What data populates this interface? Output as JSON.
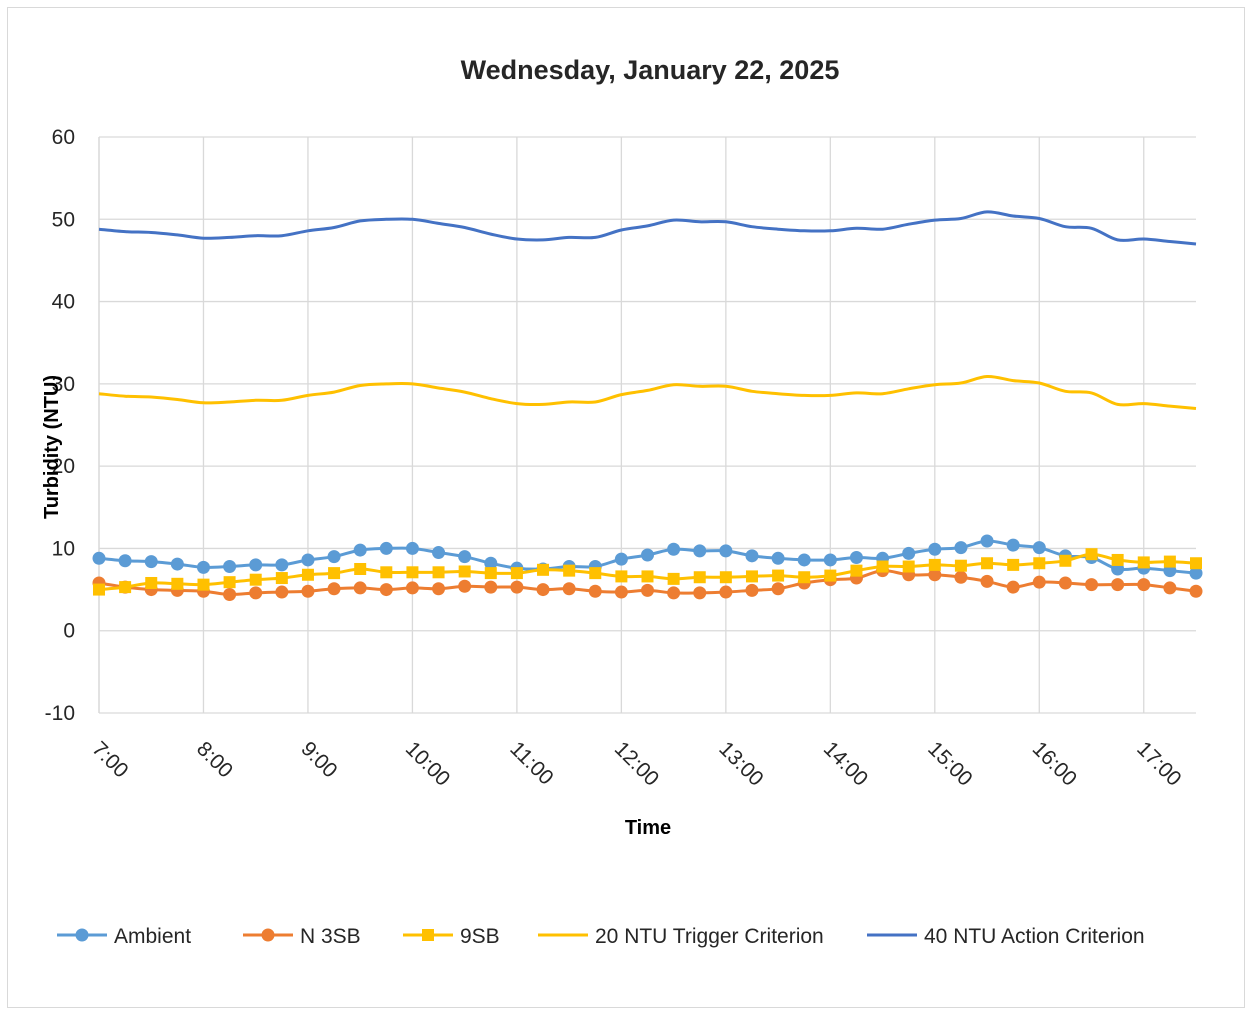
{
  "chart_data": {
    "type": "line",
    "title": "Wednesday, January 22, 2025",
    "xlabel": "Time",
    "ylabel": "Turbidity (NTU)",
    "ylim": [
      -10,
      60
    ],
    "yticks": [
      -10,
      0,
      10,
      20,
      30,
      40,
      50,
      60
    ],
    "xticks": [
      "7:00",
      "8:00",
      "9:00",
      "10:00",
      "11:00",
      "12:00",
      "13:00",
      "14:00",
      "15:00",
      "16:00",
      "17:00"
    ],
    "x": [
      "7:00",
      "7:15",
      "7:30",
      "7:45",
      "8:00",
      "8:15",
      "8:30",
      "8:45",
      "9:00",
      "9:15",
      "9:30",
      "9:45",
      "10:00",
      "10:15",
      "10:30",
      "10:45",
      "11:00",
      "11:15",
      "11:30",
      "11:45",
      "12:00",
      "12:15",
      "12:30",
      "12:45",
      "13:00",
      "13:15",
      "13:30",
      "13:45",
      "14:00",
      "14:15",
      "14:30",
      "14:45",
      "15:00",
      "15:15",
      "15:30",
      "15:45",
      "16:00",
      "16:15",
      "16:30",
      "16:45",
      "17:00",
      "17:15",
      "17:30"
    ],
    "grid": "vertical and horizontal",
    "legend_position": "bottom",
    "series": [
      {
        "name": "Ambient",
        "color": "#5b9bd5",
        "marker": "circle",
        "line_width": 3,
        "values": [
          8.8,
          8.5,
          8.4,
          8.1,
          7.7,
          7.8,
          8.0,
          8.0,
          8.6,
          9.0,
          9.8,
          10.0,
          10.0,
          9.5,
          9.0,
          8.2,
          7.6,
          7.5,
          7.8,
          7.8,
          8.7,
          9.2,
          9.9,
          9.7,
          9.7,
          9.1,
          8.8,
          8.6,
          8.6,
          8.9,
          8.8,
          9.4,
          9.9,
          10.1,
          10.9,
          10.4,
          10.1,
          9.1,
          8.9,
          7.5,
          7.6,
          7.3,
          7.0
        ]
      },
      {
        "name": "N 3SB",
        "color": "#ed7d31",
        "marker": "circle",
        "line_width": 3,
        "values": [
          5.8,
          5.3,
          5.0,
          4.9,
          4.8,
          4.4,
          4.6,
          4.7,
          4.8,
          5.1,
          5.2,
          5.0,
          5.2,
          5.1,
          5.4,
          5.3,
          5.3,
          5.0,
          5.1,
          4.8,
          4.7,
          4.9,
          4.6,
          4.6,
          4.7,
          4.9,
          5.1,
          5.8,
          6.2,
          6.4,
          7.3,
          6.8,
          6.8,
          6.5,
          6.0,
          5.3,
          5.9,
          5.8,
          5.6,
          5.6,
          5.6,
          5.2,
          4.8
        ]
      },
      {
        "name": "9SB",
        "color": "#ffc000",
        "marker": "square",
        "line_width": 3,
        "values": [
          5.0,
          5.3,
          5.8,
          5.7,
          5.6,
          5.9,
          6.2,
          6.4,
          6.8,
          7.0,
          7.5,
          7.1,
          7.1,
          7.1,
          7.2,
          7.0,
          7.0,
          7.4,
          7.3,
          7.0,
          6.6,
          6.6,
          6.3,
          6.5,
          6.5,
          6.6,
          6.7,
          6.5,
          6.7,
          7.3,
          7.8,
          7.8,
          8.0,
          7.9,
          8.2,
          8.0,
          8.2,
          8.5,
          9.3,
          8.6,
          8.3,
          8.4,
          8.2
        ]
      },
      {
        "name": "20 NTU Trigger Criterion",
        "color": "#ffc000",
        "marker": "none",
        "line_width": 3,
        "values": [
          28.8,
          28.5,
          28.4,
          28.1,
          27.7,
          27.8,
          28.0,
          28.0,
          28.6,
          29.0,
          29.8,
          30.0,
          30.0,
          29.5,
          29.0,
          28.2,
          27.6,
          27.5,
          27.8,
          27.8,
          28.7,
          29.2,
          29.9,
          29.7,
          29.7,
          29.1,
          28.8,
          28.6,
          28.6,
          28.9,
          28.8,
          29.4,
          29.9,
          30.1,
          30.9,
          30.4,
          30.1,
          29.1,
          28.9,
          27.5,
          27.6,
          27.3,
          27.0
        ]
      },
      {
        "name": "40 NTU Action Criterion",
        "color": "#4472c4",
        "marker": "none",
        "line_width": 3,
        "values": [
          48.8,
          48.5,
          48.4,
          48.1,
          47.7,
          47.8,
          48.0,
          48.0,
          48.6,
          49.0,
          49.8,
          50.0,
          50.0,
          49.5,
          49.0,
          48.2,
          47.6,
          47.5,
          47.8,
          47.8,
          48.7,
          49.2,
          49.9,
          49.7,
          49.7,
          49.1,
          48.8,
          48.6,
          48.6,
          48.9,
          48.8,
          49.4,
          49.9,
          50.1,
          50.9,
          50.4,
          50.1,
          49.1,
          48.9,
          47.5,
          47.6,
          47.3,
          47.0
        ]
      }
    ]
  }
}
